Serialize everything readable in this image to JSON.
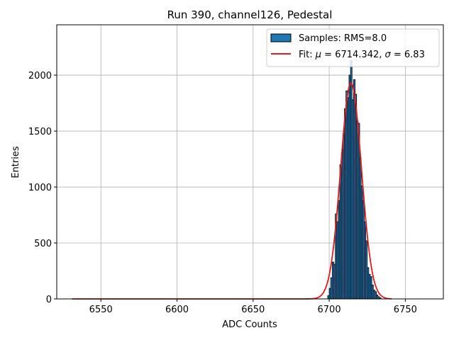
{
  "chart_data": {
    "type": "bar",
    "title": "Run 390, channel126, Pedestal",
    "xlabel": "ADC Counts",
    "ylabel": "Entries",
    "xlim": [
      6521,
      6775
    ],
    "ylim": [
      0,
      2450
    ],
    "xticks": [
      6550,
      6600,
      6650,
      6700,
      6750
    ],
    "yticks": [
      0,
      500,
      1000,
      1500,
      2000
    ],
    "grid": true,
    "legend_position": "top-right",
    "legend": {
      "hist_label": "Samples: RMS=8.0",
      "fit_label_prefix": "Fit: ",
      "fit_mu_symbol": "μ",
      "fit_mu_value": " = 6714.342, ",
      "fit_sigma_symbol": "σ",
      "fit_sigma_value": " = 6.83"
    },
    "colors": {
      "bars": "#1f77b4",
      "bar_edge": "#000000",
      "fit": "#e41a1c",
      "grid": "#b0b0b0"
    },
    "histogram": {
      "bin_width": 1,
      "bins": [
        {
          "x": 6699,
          "y": 30
        },
        {
          "x": 6700,
          "y": 95
        },
        {
          "x": 6701,
          "y": 190
        },
        {
          "x": 6702,
          "y": 330
        },
        {
          "x": 6703,
          "y": 310
        },
        {
          "x": 6704,
          "y": 760
        },
        {
          "x": 6705,
          "y": 690
        },
        {
          "x": 6706,
          "y": 880
        },
        {
          "x": 6707,
          "y": 1200
        },
        {
          "x": 6708,
          "y": 1310
        },
        {
          "x": 6709,
          "y": 1470
        },
        {
          "x": 6710,
          "y": 1700
        },
        {
          "x": 6711,
          "y": 1860
        },
        {
          "x": 6712,
          "y": 1800
        },
        {
          "x": 6713,
          "y": 2000
        },
        {
          "x": 6714,
          "y": 2130
        },
        {
          "x": 6715,
          "y": 1780
        },
        {
          "x": 6716,
          "y": 1960
        },
        {
          "x": 6717,
          "y": 1830
        },
        {
          "x": 6718,
          "y": 1590
        },
        {
          "x": 6719,
          "y": 1570
        },
        {
          "x": 6720,
          "y": 1260
        },
        {
          "x": 6721,
          "y": 1010
        },
        {
          "x": 6722,
          "y": 880
        },
        {
          "x": 6723,
          "y": 690
        },
        {
          "x": 6724,
          "y": 520
        },
        {
          "x": 6725,
          "y": 280
        },
        {
          "x": 6726,
          "y": 220
        },
        {
          "x": 6727,
          "y": 200
        },
        {
          "x": 6728,
          "y": 125
        },
        {
          "x": 6729,
          "y": 80
        },
        {
          "x": 6730,
          "y": 65
        },
        {
          "x": 6731,
          "y": 35
        },
        {
          "x": 6732,
          "y": 20
        },
        {
          "x": 6733,
          "y": 10
        }
      ]
    },
    "fit": {
      "type": "gaussian",
      "mu": 6714.342,
      "sigma": 6.83,
      "amplitude": 1930,
      "x_range": [
        6531,
        6741
      ]
    }
  }
}
